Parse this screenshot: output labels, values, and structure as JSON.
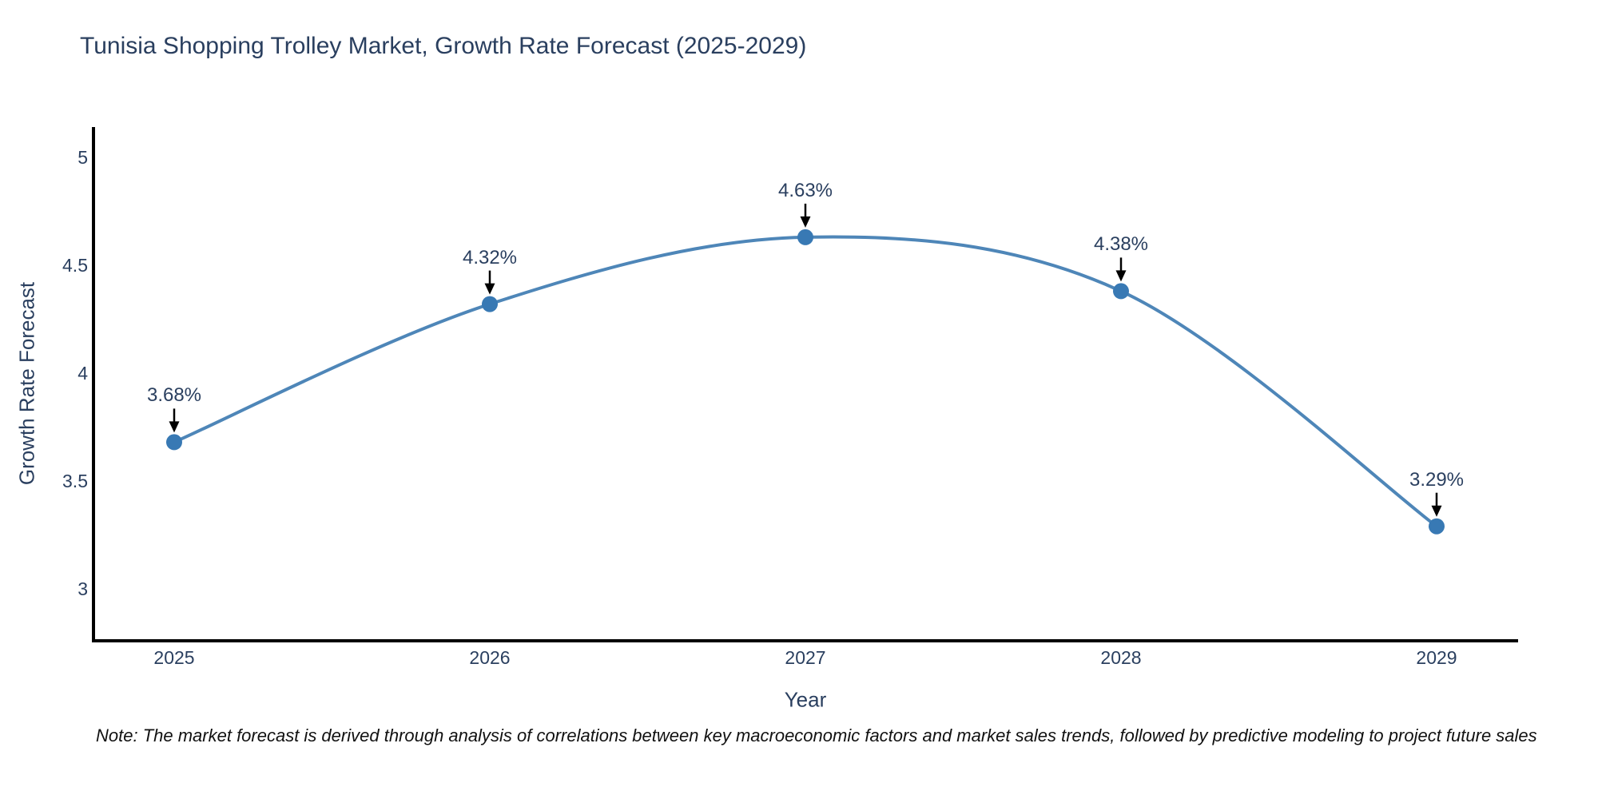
{
  "note": "Note: The market forecast is derived through analysis of correlations between key macroeconomic factors and market sales trends, followed by predictive modeling to project future sales",
  "chart_data": {
    "type": "line",
    "line_shape": "spline",
    "title": "Tunisia Shopping Trolley Market, Growth Rate Forecast (2025-2029)",
    "xlabel": "Year",
    "ylabel": "Growth Rate Forecast",
    "categories": [
      "2025",
      "2026",
      "2027",
      "2028",
      "2029"
    ],
    "series": [
      {
        "name": "Growth Rate Forecast",
        "values": [
          3.68,
          4.32,
          4.63,
          4.38,
          3.29
        ]
      }
    ],
    "point_labels": [
      "3.68%",
      "4.32%",
      "4.63%",
      "4.38%",
      "3.29%"
    ],
    "yticks": [
      5,
      4.5,
      4,
      3.5,
      3
    ],
    "ytick_labels": [
      "5",
      "4.5",
      "4",
      "3.5",
      "3"
    ],
    "ylim": [
      2.76,
      5.14
    ],
    "grid": false,
    "legend": "none",
    "annotation_style": "label-with-down-arrow",
    "colors": {
      "line": "#4e86b8",
      "marker": "#3879b4",
      "arrow": "#000000",
      "axis": "#000000",
      "text": "#2a3f5f",
      "note_text": "#111111",
      "background": "#ffffff"
    }
  }
}
